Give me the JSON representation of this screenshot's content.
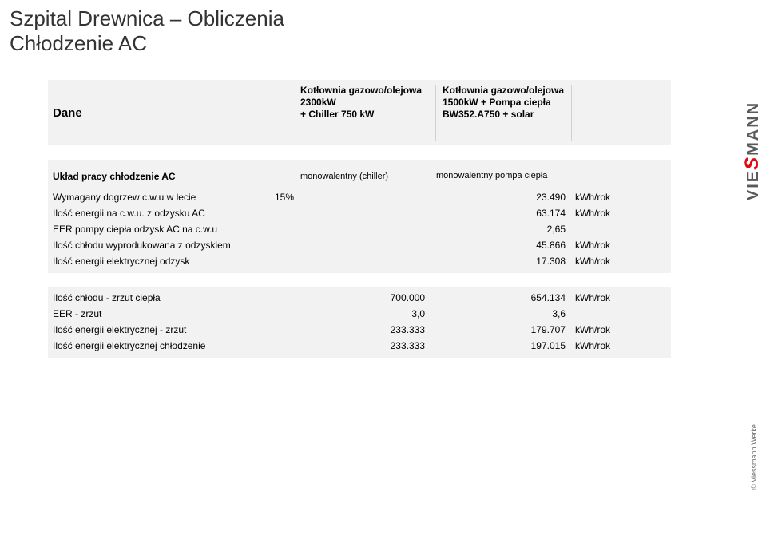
{
  "title_line1": "Szpital Drewnica – Obliczenia",
  "title_line2": "Chłodzenie AC",
  "dane_header": "Dane",
  "col_a_header": "Kotłownia gazowo/olejowa 2300kW\n+ Chiller 750 kW",
  "col_b_header": "Kotłownia gazowo/olejowa 1500kW + Pompa ciepła BW352.A750 + solar",
  "section_ac": {
    "label": "Układ pracy chłodzenie AC",
    "col_a": "monowalentny (chiller)",
    "col_b": "monowalentny pompa ciepła"
  },
  "rows1": [
    {
      "label": "Wymagany dogrzew c.w.u w lecie",
      "pct": "15%",
      "a": "",
      "b": "23.490",
      "unit": "kWh/rok"
    },
    {
      "label": "Ilość energii na c.w.u. z odzysku AC",
      "pct": "",
      "a": "",
      "b": "63.174",
      "unit": "kWh/rok"
    },
    {
      "label": "EER pompy ciepła odzysk AC na c.w.u",
      "pct": "",
      "a": "",
      "b": "2,65",
      "unit": ""
    },
    {
      "label": "Ilość chłodu wyprodukowana z odzyskiem",
      "pct": "",
      "a": "",
      "b": "45.866",
      "unit": "kWh/rok"
    },
    {
      "label": "Ilość energii elektrycznej odzysk",
      "pct": "",
      "a": "",
      "b": "17.308",
      "unit": "kWh/rok"
    }
  ],
  "rows2": [
    {
      "label": "Ilość chłodu  - zrzut ciepła",
      "pct": "",
      "a": "700.000",
      "b": "654.134",
      "unit": "kWh/rok"
    },
    {
      "label": "EER - zrzut",
      "pct": "",
      "a": "3,0",
      "b": "3,6",
      "unit": ""
    },
    {
      "label": "Ilość energii elektrycznej - zrzut",
      "pct": "",
      "a": "233.333",
      "b": "179.707",
      "unit": "kWh/rok"
    },
    {
      "label": "Ilość energii elektrycznej chłodzenie",
      "pct": "",
      "a": "233.333",
      "b": "197.015",
      "unit": "kWh/rok"
    }
  ],
  "brand_v": "VIE",
  "brand_rest": "SMANN",
  "brand_s": "S",
  "copyright": "© Viessmann Werke",
  "colors": {
    "title": "#333333",
    "text": "#000000",
    "gray_band": "#f2f2f2",
    "brand_red": "#e30613",
    "brand_gray": "#5a5a5a",
    "border": "#d0d0d0",
    "bg": "#ffffff"
  },
  "fontsize": {
    "title": 26,
    "body": 12,
    "big_label": 15,
    "brand": 20,
    "copyright": 9
  }
}
